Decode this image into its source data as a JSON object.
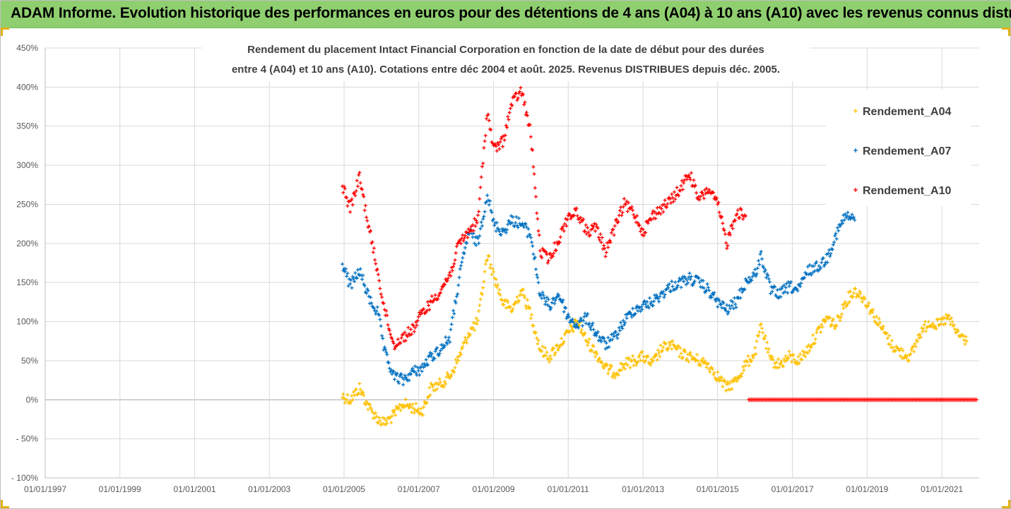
{
  "header": {
    "title": "ADAM Informe. Evolution historique des performances en euros pour des détentions de 4 ans (A04) à 10 ans (A10) avec les revenus connus distribués"
  },
  "colors": {
    "header_bg": "#8fcf70",
    "A04": "#ffc000",
    "A07": "#0070c0",
    "A10": "#ff0000",
    "grid": "#d9d9d9",
    "axis_text": "#595959"
  },
  "chart_data": {
    "type": "scatter",
    "marker": "plus",
    "title": [
      "Rendement du placement Intact Financial Corporation en fonction de la date de début pour des durées",
      "entre 4 (A04) et 10 ans (A10). Cotations entre déc 2004 et août. 2025. Revenus DISTRIBUES depuis déc. 2005."
    ],
    "xlabel": "",
    "ylabel": "",
    "x_type": "date",
    "xlim": [
      "1997-01-01",
      "2022-01-01"
    ],
    "ylim": [
      -100,
      450
    ],
    "y_unit": "%",
    "x_tick_labels": [
      "01/01/1997",
      "01/01/1999",
      "01/01/2001",
      "01/01/2003",
      "01/01/2005",
      "01/01/2007",
      "01/01/2009",
      "01/01/2011",
      "01/01/2013",
      "01/01/2015",
      "01/01/2017",
      "01/01/2019",
      "01/01/2021"
    ],
    "y_tick_values": [
      -100,
      -50,
      0,
      50,
      100,
      150,
      200,
      250,
      300,
      350,
      400,
      450
    ],
    "y_tick_labels": [
      "- 100%",
      "- 50%",
      "0%",
      "50%",
      "100%",
      "150%",
      "200%",
      "250%",
      "300%",
      "350%",
      "400%",
      "450%"
    ],
    "grid": true,
    "legend_position": "top-right",
    "series": [
      {
        "name": "Rendement_A04",
        "color": "#ffc000",
        "points": [
          [
            "2004-12-15",
            5
          ],
          [
            "2005-03-01",
            0
          ],
          [
            "2005-06-01",
            15
          ],
          [
            "2005-09-01",
            -10
          ],
          [
            "2005-12-01",
            -25
          ],
          [
            "2006-02-01",
            -30
          ],
          [
            "2006-05-01",
            -20
          ],
          [
            "2006-08-01",
            -5
          ],
          [
            "2006-11-01",
            -10
          ],
          [
            "2007-02-01",
            -15
          ],
          [
            "2007-05-01",
            15
          ],
          [
            "2007-08-01",
            20
          ],
          [
            "2007-11-01",
            30
          ],
          [
            "2008-02-01",
            55
          ],
          [
            "2008-05-01",
            85
          ],
          [
            "2008-08-01",
            100
          ],
          [
            "2008-11-01",
            185
          ],
          [
            "2009-01-01",
            160
          ],
          [
            "2009-04-01",
            125
          ],
          [
            "2009-07-01",
            115
          ],
          [
            "2009-10-01",
            140
          ],
          [
            "2010-01-01",
            110
          ],
          [
            "2010-04-01",
            65
          ],
          [
            "2010-07-01",
            55
          ],
          [
            "2010-10-01",
            70
          ],
          [
            "2011-01-01",
            85
          ],
          [
            "2011-04-01",
            100
          ],
          [
            "2011-07-01",
            75
          ],
          [
            "2011-10-01",
            60
          ],
          [
            "2012-01-01",
            40
          ],
          [
            "2012-04-01",
            35
          ],
          [
            "2012-07-01",
            45
          ],
          [
            "2012-10-01",
            50
          ],
          [
            "2013-01-01",
            55
          ],
          [
            "2013-04-01",
            45
          ],
          [
            "2013-07-01",
            65
          ],
          [
            "2013-10-01",
            70
          ],
          [
            "2014-01-01",
            60
          ],
          [
            "2014-04-01",
            55
          ],
          [
            "2014-07-01",
            50
          ],
          [
            "2014-10-01",
            45
          ],
          [
            "2015-01-01",
            30
          ],
          [
            "2015-04-01",
            15
          ],
          [
            "2015-07-01",
            25
          ],
          [
            "2015-10-01",
            45
          ],
          [
            "2016-01-01",
            60
          ],
          [
            "2016-03-01",
            95
          ],
          [
            "2016-06-01",
            50
          ],
          [
            "2016-09-01",
            45
          ],
          [
            "2016-12-01",
            55
          ],
          [
            "2017-03-01",
            50
          ],
          [
            "2017-06-01",
            65
          ],
          [
            "2017-09-01",
            85
          ],
          [
            "2017-12-01",
            105
          ],
          [
            "2018-03-01",
            95
          ],
          [
            "2018-06-01",
            125
          ],
          [
            "2018-09-01",
            140
          ],
          [
            "2018-12-01",
            130
          ],
          [
            "2019-03-01",
            110
          ],
          [
            "2019-06-01",
            90
          ],
          [
            "2019-09-01",
            70
          ],
          [
            "2019-12-01",
            60
          ],
          [
            "2020-03-01",
            55
          ],
          [
            "2020-06-01",
            85
          ],
          [
            "2020-09-01",
            100
          ],
          [
            "2020-12-01",
            95
          ],
          [
            "2021-03-01",
            105
          ],
          [
            "2021-06-01",
            85
          ],
          [
            "2021-09-01",
            75
          ]
        ]
      },
      {
        "name": "Rendement_A07",
        "color": "#0070c0",
        "points": [
          [
            "2004-12-15",
            175
          ],
          [
            "2005-03-01",
            145
          ],
          [
            "2005-06-01",
            165
          ],
          [
            "2005-09-01",
            130
          ],
          [
            "2005-12-01",
            110
          ],
          [
            "2006-02-01",
            60
          ],
          [
            "2006-05-01",
            30
          ],
          [
            "2006-08-01",
            25
          ],
          [
            "2006-11-01",
            35
          ],
          [
            "2007-02-01",
            40
          ],
          [
            "2007-05-01",
            55
          ],
          [
            "2007-08-01",
            65
          ],
          [
            "2007-11-01",
            80
          ],
          [
            "2008-02-01",
            155
          ],
          [
            "2008-05-01",
            215
          ],
          [
            "2008-08-01",
            200
          ],
          [
            "2008-11-01",
            265
          ],
          [
            "2009-01-01",
            225
          ],
          [
            "2009-04-01",
            215
          ],
          [
            "2009-07-01",
            230
          ],
          [
            "2009-10-01",
            225
          ],
          [
            "2010-01-01",
            210
          ],
          [
            "2010-04-01",
            135
          ],
          [
            "2010-07-01",
            120
          ],
          [
            "2010-10-01",
            135
          ],
          [
            "2011-01-01",
            105
          ],
          [
            "2011-04-01",
            95
          ],
          [
            "2011-07-01",
            105
          ],
          [
            "2011-10-01",
            85
          ],
          [
            "2012-01-01",
            70
          ],
          [
            "2012-04-01",
            80
          ],
          [
            "2012-07-01",
            100
          ],
          [
            "2012-10-01",
            115
          ],
          [
            "2013-01-01",
            120
          ],
          [
            "2013-04-01",
            125
          ],
          [
            "2013-07-01",
            135
          ],
          [
            "2013-10-01",
            145
          ],
          [
            "2014-01-01",
            150
          ],
          [
            "2014-04-01",
            155
          ],
          [
            "2014-07-01",
            150
          ],
          [
            "2014-10-01",
            140
          ],
          [
            "2015-01-01",
            125
          ],
          [
            "2015-04-01",
            115
          ],
          [
            "2015-07-01",
            125
          ],
          [
            "2015-10-01",
            150
          ],
          [
            "2016-01-01",
            160
          ],
          [
            "2016-03-01",
            185
          ],
          [
            "2016-06-01",
            140
          ],
          [
            "2016-09-01",
            135
          ],
          [
            "2016-12-01",
            145
          ],
          [
            "2017-03-01",
            140
          ],
          [
            "2017-06-01",
            165
          ],
          [
            "2017-09-01",
            170
          ],
          [
            "2017-12-01",
            180
          ],
          [
            "2018-03-01",
            210
          ],
          [
            "2018-06-01",
            235
          ],
          [
            "2018-09-01",
            230
          ]
        ]
      },
      {
        "name": "Rendement_A10",
        "color": "#ff0000",
        "points": [
          [
            "2004-12-15",
            275
          ],
          [
            "2005-03-01",
            245
          ],
          [
            "2005-06-01",
            285
          ],
          [
            "2005-09-01",
            220
          ],
          [
            "2005-12-01",
            160
          ],
          [
            "2006-02-01",
            115
          ],
          [
            "2006-05-01",
            70
          ],
          [
            "2006-08-01",
            80
          ],
          [
            "2006-11-01",
            90
          ],
          [
            "2007-02-01",
            110
          ],
          [
            "2007-05-01",
            125
          ],
          [
            "2007-08-01",
            140
          ],
          [
            "2007-11-01",
            160
          ],
          [
            "2008-02-01",
            200
          ],
          [
            "2008-05-01",
            215
          ],
          [
            "2008-08-01",
            230
          ],
          [
            "2008-11-01",
            370
          ],
          [
            "2009-01-01",
            320
          ],
          [
            "2009-04-01",
            330
          ],
          [
            "2009-07-01",
            380
          ],
          [
            "2009-10-01",
            395
          ],
          [
            "2010-01-01",
            340
          ],
          [
            "2010-04-01",
            190
          ],
          [
            "2010-07-01",
            180
          ],
          [
            "2010-10-01",
            205
          ],
          [
            "2011-01-01",
            235
          ],
          [
            "2011-04-01",
            240
          ],
          [
            "2011-07-01",
            215
          ],
          [
            "2011-10-01",
            220
          ],
          [
            "2012-01-01",
            190
          ],
          [
            "2012-04-01",
            220
          ],
          [
            "2012-07-01",
            250
          ],
          [
            "2012-10-01",
            240
          ],
          [
            "2013-01-01",
            215
          ],
          [
            "2013-04-01",
            235
          ],
          [
            "2013-07-01",
            245
          ],
          [
            "2013-10-01",
            255
          ],
          [
            "2014-01-01",
            270
          ],
          [
            "2014-04-01",
            290
          ],
          [
            "2014-07-01",
            255
          ],
          [
            "2014-10-01",
            270
          ],
          [
            "2015-01-01",
            250
          ],
          [
            "2015-04-01",
            200
          ],
          [
            "2015-07-01",
            240
          ],
          [
            "2015-10-01",
            235
          ]
        ]
      }
    ],
    "zero_markers_range": [
      "2015-11-01",
      "2021-12-15"
    ]
  }
}
